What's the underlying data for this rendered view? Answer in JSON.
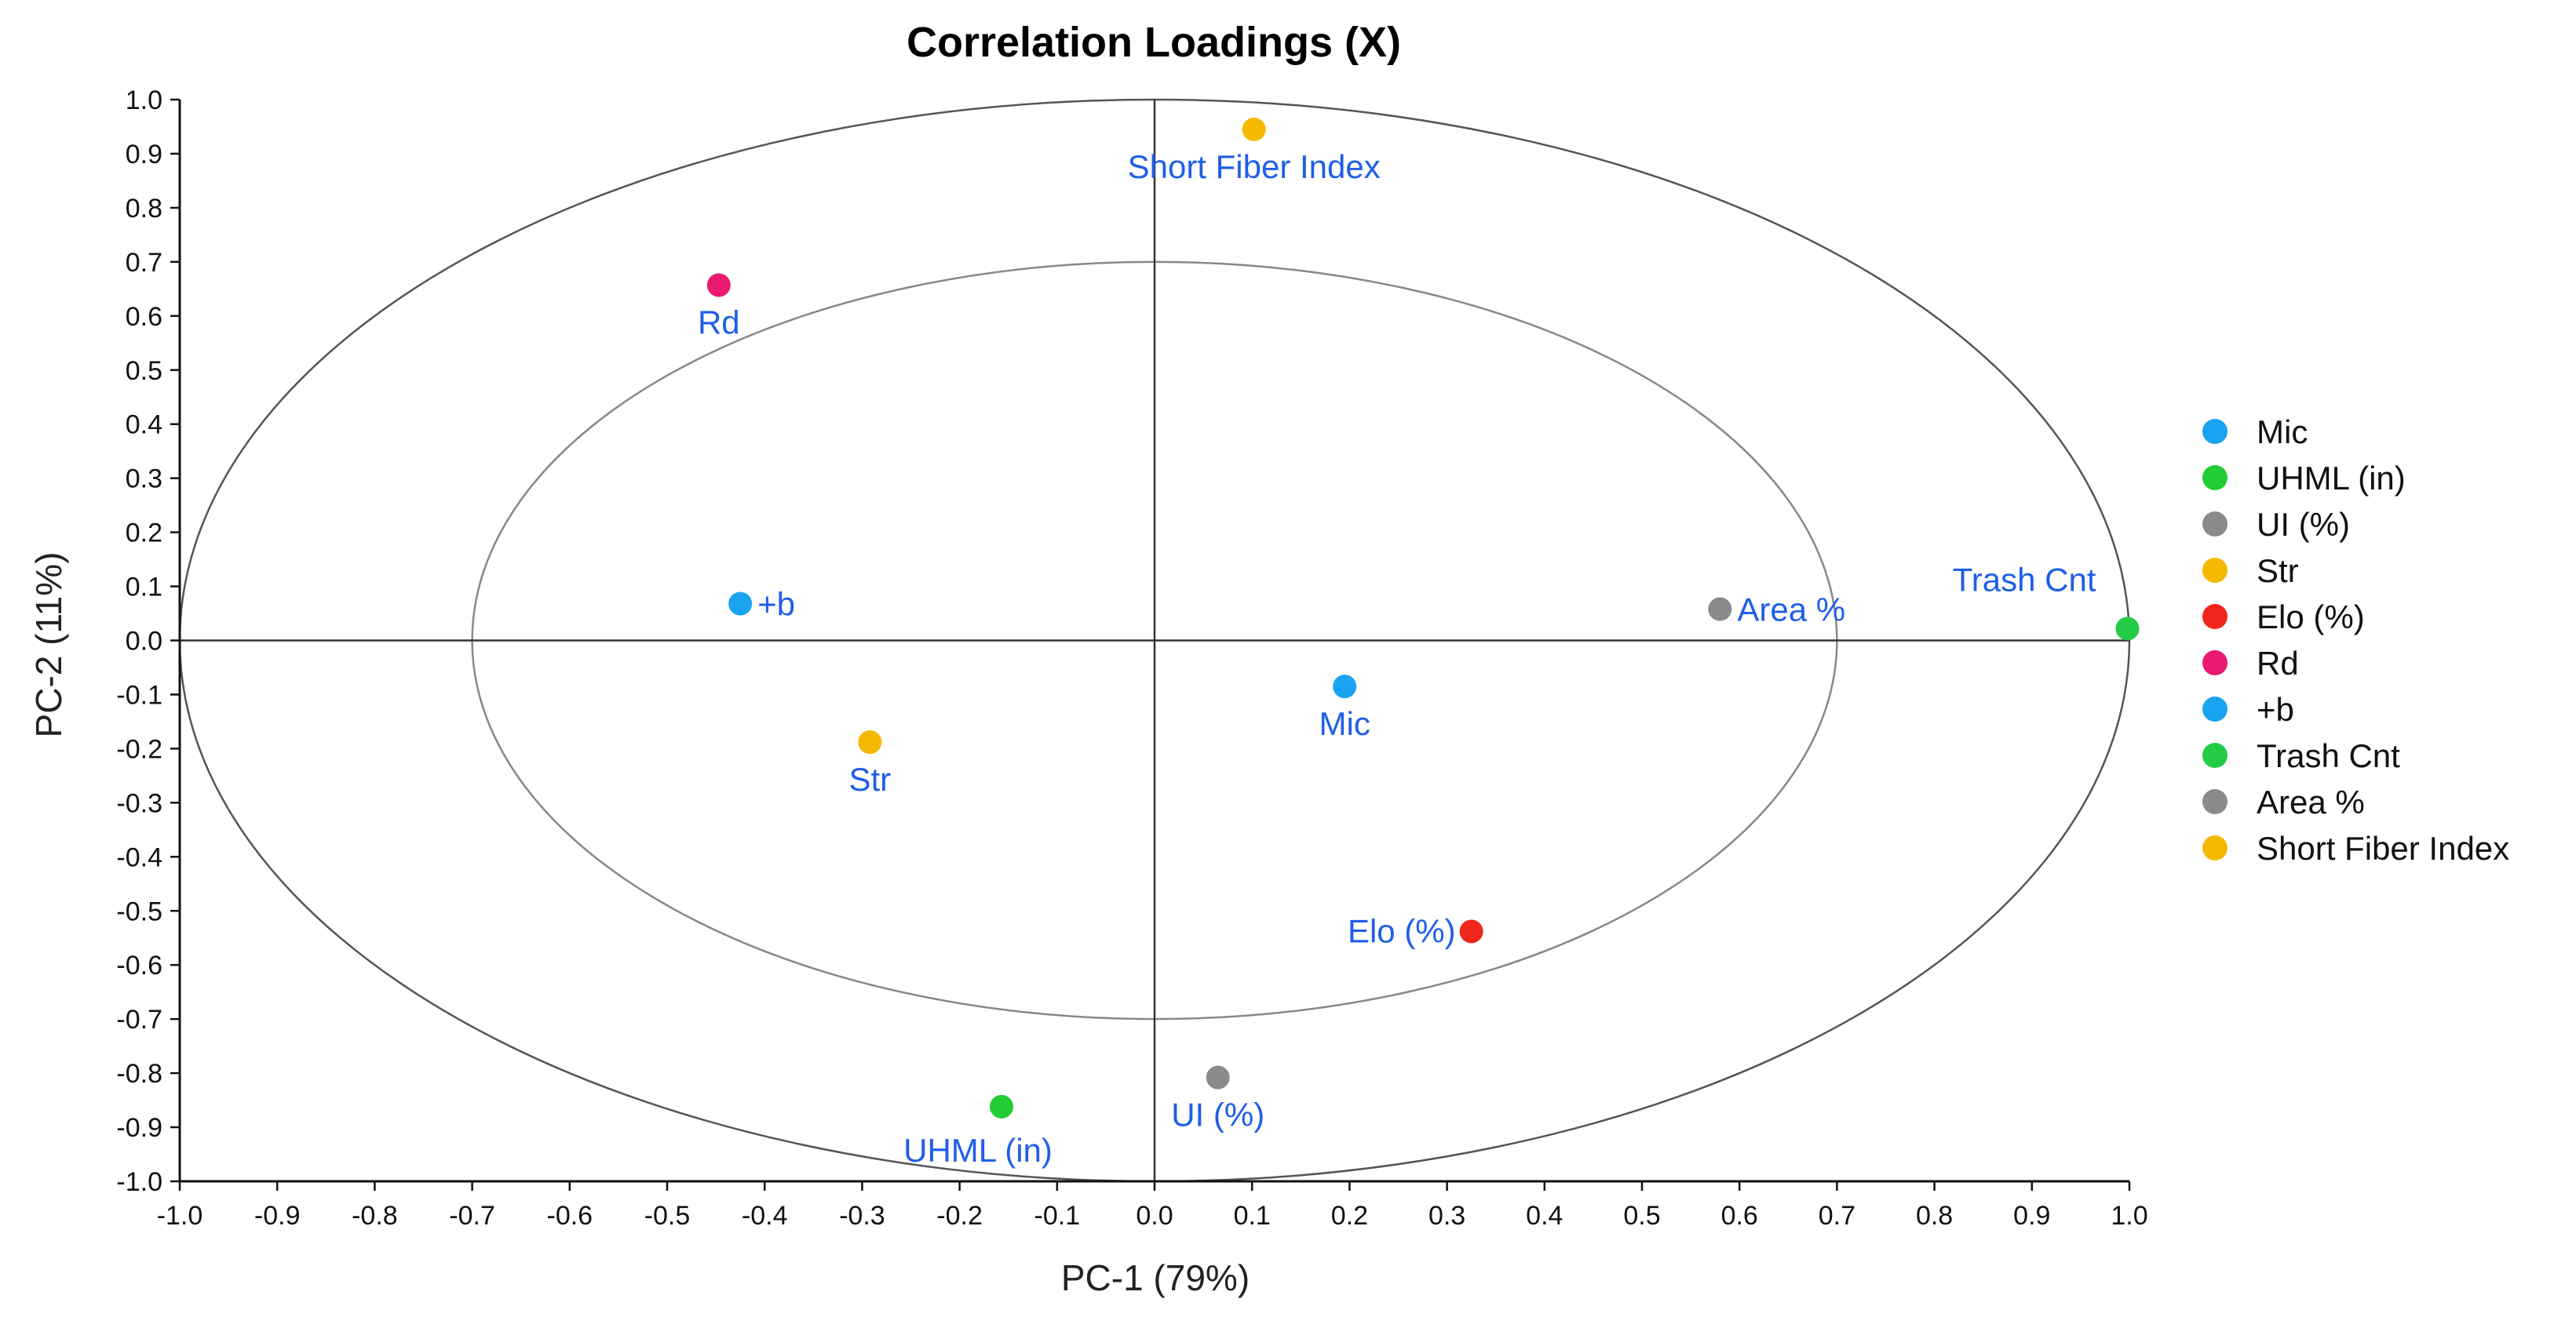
{
  "chart_data": {
    "type": "scatter",
    "title": "Correlation Loadings (X)",
    "xlabel": "PC-1 (79%)",
    "ylabel": "PC-2 (11%)",
    "xlim": [
      -1.0,
      1.0
    ],
    "ylim": [
      -1.0,
      1.0
    ],
    "xticks": [
      "-1.0",
      "-0.9",
      "-0.8",
      "-0.7",
      "-0.6",
      "-0.5",
      "-0.4",
      "-0.3",
      "-0.2",
      "-0.1",
      "0.0",
      "0.1",
      "0.2",
      "0.3",
      "0.4",
      "0.5",
      "0.6",
      "0.7",
      "0.8",
      "0.9",
      "1.0"
    ],
    "yticks": [
      "1.0",
      "0.9",
      "0.8",
      "0.7",
      "0.6",
      "0.5",
      "0.4",
      "0.3",
      "0.2",
      "0.1",
      "0.0",
      "-0.1",
      "-0.2",
      "-0.3",
      "-0.4",
      "-0.5",
      "-0.6",
      "-0.7",
      "-0.8",
      "-0.9",
      "-1.0"
    ],
    "circles": [
      {
        "name": "outer",
        "radius": 1.0,
        "color": "#555555"
      },
      {
        "name": "inner",
        "radius": 0.7,
        "color": "#888888"
      }
    ],
    "label_color": "#1f5ee8",
    "legend_position": "right",
    "points": [
      {
        "name": "Mic",
        "x": 0.195,
        "y": -0.085,
        "color": "#1aa3f0",
        "label_pos": "below"
      },
      {
        "name": "UHML (in)",
        "x": -0.157,
        "y": -0.862,
        "color": "#22cc33",
        "label_pos": "below-left"
      },
      {
        "name": "UI (%)",
        "x": 0.065,
        "y": -0.808,
        "color": "#8a8a8a",
        "label_pos": "below"
      },
      {
        "name": "Str",
        "x": -0.292,
        "y": -0.188,
        "color": "#f5b800",
        "label_pos": "below"
      },
      {
        "name": "Elo (%)",
        "x": 0.325,
        "y": -0.538,
        "color": "#f0261a",
        "label_pos": "left"
      },
      {
        "name": "Rd",
        "x": -0.447,
        "y": 0.657,
        "color": "#ea1a6e",
        "label_pos": "below"
      },
      {
        "name": "+b",
        "x": -0.425,
        "y": 0.068,
        "color": "#1aa3f0",
        "label_pos": "right"
      },
      {
        "name": "Trash Cnt",
        "x": 0.998,
        "y": 0.022,
        "color": "#22cc44",
        "label_pos": "above-left"
      },
      {
        "name": "Area %",
        "x": 0.58,
        "y": 0.058,
        "color": "#8a8a8a",
        "label_pos": "right"
      },
      {
        "name": "Short Fiber Index",
        "x": 0.102,
        "y": 0.945,
        "color": "#f5b800",
        "label_pos": "below"
      }
    ]
  }
}
